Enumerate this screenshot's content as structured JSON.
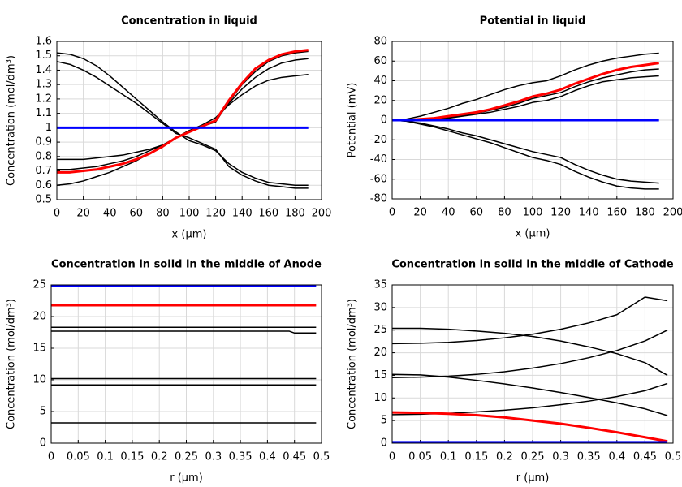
{
  "chart_data": [
    {
      "type": "line",
      "title": "Concentration in liquid",
      "xlabel": "x (µm)",
      "ylabel": "Concentration (mol/dm³)",
      "x": [
        0,
        10,
        20,
        30,
        40,
        50,
        60,
        70,
        80,
        90,
        100,
        110,
        120,
        130,
        140,
        150,
        160,
        170,
        180,
        190
      ],
      "xlim": [
        0,
        200
      ],
      "ylim": [
        0.5,
        1.6
      ],
      "xticks": [
        0,
        20,
        40,
        60,
        80,
        100,
        120,
        140,
        160,
        180,
        200
      ],
      "yticks": [
        0.5,
        0.6,
        0.7,
        0.8,
        0.9,
        1,
        1.1,
        1.2,
        1.3,
        1.4,
        1.5,
        1.6
      ],
      "grid": true,
      "series": [
        {
          "color": "#000000",
          "values": [
            1.52,
            1.51,
            1.48,
            1.43,
            1.36,
            1.28,
            1.2,
            1.12,
            1.04,
            0.97,
            0.91,
            0.88,
            0.84,
            0.75,
            0.69,
            0.65,
            0.62,
            0.61,
            0.6,
            0.6
          ]
        },
        {
          "color": "#000000",
          "values": [
            1.46,
            1.44,
            1.4,
            1.35,
            1.29,
            1.23,
            1.17,
            1.1,
            1.03,
            0.96,
            0.93,
            0.89,
            0.85,
            0.73,
            0.67,
            0.63,
            0.6,
            0.59,
            0.58,
            0.58
          ]
        },
        {
          "color": "#000000",
          "values": [
            0.78,
            0.78,
            0.78,
            0.79,
            0.8,
            0.81,
            0.83,
            0.85,
            0.88,
            0.93,
            0.98,
            1.02,
            1.07,
            1.16,
            1.23,
            1.29,
            1.33,
            1.35,
            1.36,
            1.37
          ]
        },
        {
          "color": "#000000",
          "values": [
            0.71,
            0.71,
            0.72,
            0.73,
            0.75,
            0.77,
            0.8,
            0.84,
            0.88,
            0.93,
            0.98,
            1.01,
            1.05,
            1.17,
            1.27,
            1.35,
            1.41,
            1.45,
            1.47,
            1.48
          ]
        },
        {
          "color": "#000000",
          "values": [
            0.6,
            0.61,
            0.63,
            0.66,
            0.69,
            0.73,
            0.77,
            0.82,
            0.87,
            0.93,
            0.98,
            1.01,
            1.04,
            1.18,
            1.3,
            1.39,
            1.46,
            1.5,
            1.52,
            1.53
          ]
        },
        {
          "color": "#ff0000",
          "values": [
            0.69,
            0.69,
            0.7,
            0.71,
            0.73,
            0.75,
            0.78,
            0.82,
            0.87,
            0.93,
            0.97,
            1.01,
            1.05,
            1.19,
            1.31,
            1.41,
            1.47,
            1.51,
            1.53,
            1.54
          ]
        },
        {
          "color": "#0000ff",
          "values": [
            1,
            1,
            1,
            1,
            1,
            1,
            1,
            1,
            1,
            1,
            1,
            1,
            1,
            1,
            1,
            1,
            1,
            1,
            1,
            1
          ]
        }
      ]
    },
    {
      "type": "line",
      "title": "Potential in liquid",
      "xlabel": "x (µm)",
      "ylabel": "Potential (mV)",
      "x": [
        0,
        10,
        20,
        30,
        40,
        50,
        60,
        70,
        80,
        90,
        100,
        110,
        120,
        130,
        140,
        150,
        160,
        170,
        180,
        190
      ],
      "xlim": [
        0,
        200
      ],
      "ylim": [
        -80,
        80
      ],
      "xticks": [
        0,
        20,
        40,
        60,
        80,
        100,
        120,
        140,
        160,
        180,
        200
      ],
      "yticks": [
        -80,
        -60,
        -40,
        -20,
        0,
        20,
        40,
        60,
        80
      ],
      "grid": true,
      "series": [
        {
          "color": "#000000",
          "values": [
            0,
            1,
            4,
            8,
            12,
            17,
            21,
            26,
            31,
            35,
            38,
            40,
            45,
            51,
            56,
            60,
            63,
            65,
            67,
            68
          ]
        },
        {
          "color": "#000000",
          "values": [
            0,
            0,
            1,
            2,
            3,
            5,
            7,
            10,
            13,
            17,
            22,
            25,
            28,
            34,
            39,
            43,
            46,
            49,
            51,
            52
          ]
        },
        {
          "color": "#000000",
          "values": [
            0,
            0,
            0,
            1,
            2,
            4,
            6,
            8,
            11,
            14,
            18,
            20,
            24,
            30,
            35,
            39,
            41,
            43,
            44,
            45
          ]
        },
        {
          "color": "#000000",
          "values": [
            0,
            -1,
            -3,
            -6,
            -9,
            -13,
            -16,
            -20,
            -24,
            -28,
            -32,
            -35,
            -38,
            -45,
            -51,
            -56,
            -60,
            -62,
            -63,
            -64
          ]
        },
        {
          "color": "#000000",
          "values": [
            0,
            -1,
            -4,
            -7,
            -11,
            -15,
            -19,
            -23,
            -28,
            -33,
            -38,
            -41,
            -45,
            -52,
            -58,
            -63,
            -67,
            -69,
            -70,
            -70
          ]
        },
        {
          "color": "#ff0000",
          "values": [
            0,
            0,
            1,
            2,
            4,
            6,
            8,
            11,
            15,
            19,
            24,
            27,
            31,
            37,
            42,
            47,
            51,
            54,
            56,
            58
          ]
        },
        {
          "color": "#0000ff",
          "values": [
            0,
            0,
            0,
            0,
            0,
            0,
            0,
            0,
            0,
            0,
            0,
            0,
            0,
            0,
            0,
            0,
            0,
            0,
            0,
            0
          ]
        }
      ]
    },
    {
      "type": "line",
      "title": "Concentration in solid in the middle of Anode",
      "xlabel": "r (µm)",
      "ylabel": "Concentration (mol/dm³)",
      "x": [
        0,
        0.1,
        0.2,
        0.3,
        0.4,
        0.44,
        0.45,
        0.49
      ],
      "xlim": [
        0,
        0.5
      ],
      "ylim": [
        0,
        25
      ],
      "xticks": [
        0,
        0.05,
        0.1,
        0.15,
        0.2,
        0.25,
        0.3,
        0.35,
        0.4,
        0.45,
        0.5
      ],
      "yticks": [
        0,
        5,
        10,
        15,
        20,
        25
      ],
      "grid": true,
      "series": [
        {
          "color": "#000000",
          "values": [
            18.3,
            18.3,
            18.3,
            18.3,
            18.3,
            18.3,
            18.3,
            18.3
          ]
        },
        {
          "color": "#000000",
          "values": [
            17.7,
            17.7,
            17.7,
            17.7,
            17.7,
            17.7,
            17.4,
            17.4
          ]
        },
        {
          "color": "#000000",
          "values": [
            10.2,
            10.2,
            10.2,
            10.2,
            10.2,
            10.2,
            10.2,
            10.2
          ]
        },
        {
          "color": "#000000",
          "values": [
            9.2,
            9.2,
            9.2,
            9.2,
            9.2,
            9.2,
            9.2,
            9.2
          ]
        },
        {
          "color": "#000000",
          "values": [
            3.2,
            3.2,
            3.2,
            3.2,
            3.2,
            3.2,
            3.2,
            3.2
          ]
        },
        {
          "color": "#ff0000",
          "values": [
            21.8,
            21.8,
            21.8,
            21.8,
            21.8,
            21.8,
            21.8,
            21.8
          ]
        },
        {
          "color": "#0000ff",
          "values": [
            24.8,
            24.8,
            24.8,
            24.8,
            24.8,
            24.8,
            24.8,
            24.8
          ]
        }
      ]
    },
    {
      "type": "line",
      "title": "Concentration in solid in the middle of Cathode",
      "xlabel": "r (µm)",
      "ylabel": "Concentration (mol/dm³)",
      "x": [
        0,
        0.05,
        0.1,
        0.15,
        0.2,
        0.25,
        0.3,
        0.35,
        0.4,
        0.45,
        0.49
      ],
      "xlim": [
        0,
        0.5
      ],
      "ylim": [
        0,
        35
      ],
      "xticks": [
        0,
        0.05,
        0.1,
        0.15,
        0.2,
        0.25,
        0.3,
        0.35,
        0.4,
        0.45,
        0.5
      ],
      "yticks": [
        0,
        5,
        10,
        15,
        20,
        25,
        30,
        35
      ],
      "grid": true,
      "series": [
        {
          "color": "#000000",
          "values": [
            25.4,
            25.4,
            25.2,
            24.8,
            24.3,
            23.6,
            22.6,
            21.3,
            19.8,
            17.8,
            15
          ]
        },
        {
          "color": "#000000",
          "values": [
            22,
            22.1,
            22.3,
            22.7,
            23.3,
            24.1,
            25.2,
            26.6,
            28.4,
            32.3,
            31.5
          ]
        },
        {
          "color": "#000000",
          "values": [
            14.5,
            14.6,
            14.8,
            15.2,
            15.8,
            16.6,
            17.6,
            18.9,
            20.5,
            22.6,
            25
          ]
        },
        {
          "color": "#000000",
          "values": [
            15.2,
            15.1,
            14.6,
            13.9,
            13.1,
            12.2,
            11.2,
            10.1,
            8.9,
            7.6,
            6.1
          ]
        },
        {
          "color": "#000000",
          "values": [
            6.3,
            6.4,
            6.6,
            6.9,
            7.3,
            7.8,
            8.5,
            9.3,
            10.3,
            11.6,
            13.2
          ]
        },
        {
          "color": "#ff0000",
          "values": [
            6.8,
            6.7,
            6.5,
            6.2,
            5.7,
            5,
            4.3,
            3.4,
            2.4,
            1.3,
            0.4
          ]
        },
        {
          "color": "#0000ff",
          "values": [
            0.2,
            0.2,
            0.2,
            0.2,
            0.2,
            0.2,
            0.2,
            0.2,
            0.2,
            0.2,
            0.2
          ]
        }
      ]
    }
  ]
}
